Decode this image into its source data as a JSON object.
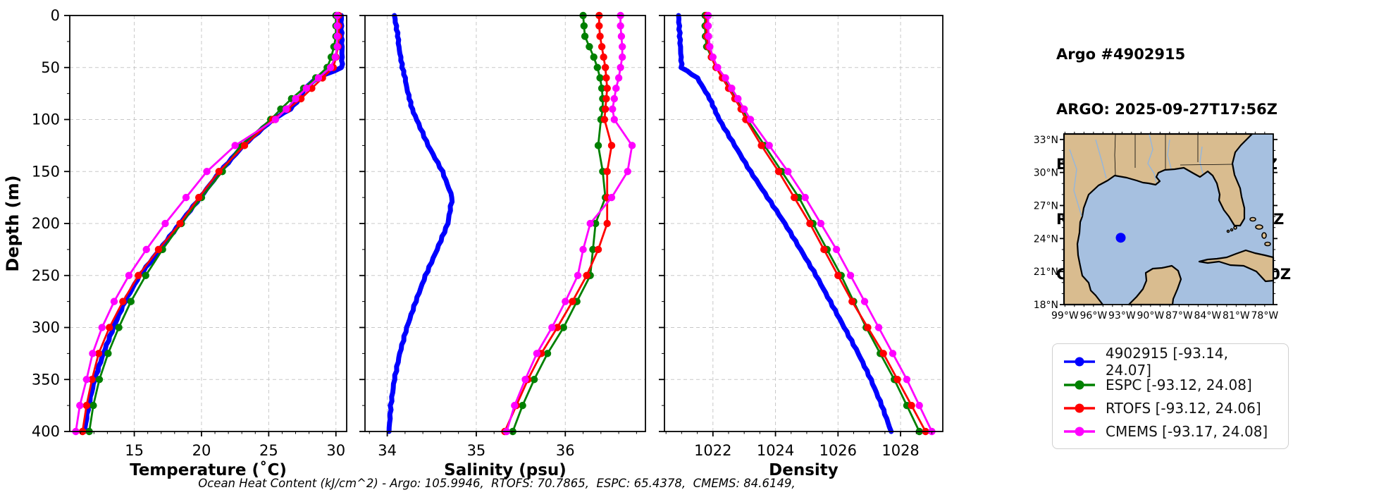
{
  "header": {
    "lines": [
      "Argo #4902915",
      "ARGO: 2025-09-27T17:56Z",
      "ESPC : 2025-09-27T18:00Z",
      "RTOFS: 2025-09-27T18:00Z",
      "CMEMS: 2025-09-27T18:00Z"
    ]
  },
  "footer": {
    "ocean_heat_content": "Ocean Heat Content (kJ/cm^2) - Argo: 105.9946,  RTOFS: 70.7865,  ESPC: 65.4378,  CMEMS: 84.6149,"
  },
  "legend": {
    "items": [
      {
        "label": "4902915 [-93.14, 24.07]",
        "color": "#0000ff"
      },
      {
        "label": "ESPC [-93.12, 24.08]",
        "color": "#008000"
      },
      {
        "label": "RTOFS [-93.12, 24.06]",
        "color": "#ff0000"
      },
      {
        "label": "CMEMS [-93.17, 24.08]",
        "color": "#ff00ff"
      }
    ]
  },
  "map": {
    "colors": {
      "land": "#d9bc8f",
      "ocean": "#a6c0e0",
      "coast": "#000000",
      "river": "#93b6dd"
    },
    "lat_tick_values": [
      33,
      30,
      27,
      24,
      21,
      18
    ],
    "lat_tick_labels": [
      "33°N",
      "30°N",
      "27°N",
      "24°N",
      "21°N",
      "18°N"
    ],
    "lon_tick_values": [
      99,
      96,
      93,
      90,
      87,
      84,
      81,
      78
    ],
    "lon_tick_labels": [
      "99°W",
      "96°W",
      "93°W",
      "90°W",
      "87°W",
      "84°W",
      "81°W",
      "78°W"
    ],
    "extent": {
      "lon": [
        -99.1,
        -77.1
      ],
      "lat": [
        18,
        33.5
      ]
    },
    "float_lonlat": [
      -93.14,
      24.07
    ],
    "float_color": "#0000ff"
  },
  "chart_data": {
    "type": "line",
    "ylabel": "Depth (m)",
    "ylim": [
      0,
      400
    ],
    "yticks": [
      0,
      50,
      100,
      150,
      200,
      250,
      300,
      350,
      400
    ],
    "y_minor_step": 25,
    "grid": "dashed",
    "depths": [
      0,
      10,
      20,
      30,
      40,
      50,
      60,
      70,
      80,
      90,
      100,
      125,
      150,
      175,
      200,
      225,
      250,
      275,
      300,
      325,
      350,
      375,
      400
    ],
    "panels": [
      {
        "name": "temperature",
        "xlabel": "Temperature (˚C)",
        "xlim": [
          10.2,
          30.8
        ],
        "xticks": [
          15,
          20,
          25,
          30
        ],
        "x_minor_step": 1,
        "series": [
          {
            "name": "4902915",
            "color": "#0000ff",
            "thick": true,
            "markers": false,
            "values": [
              30.4,
              30.4,
              30.42,
              30.45,
              30.45,
              30.45,
              28.6,
              27.7,
              27.3,
              26.6,
              25.3,
              23.1,
              21.4,
              19.9,
              18.4,
              16.9,
              15.4,
              14.3,
              13.45,
              12.7,
              12.05,
              11.6,
              11.3
            ]
          },
          {
            "name": "ESPC",
            "color": "#008000",
            "thick": false,
            "markers": true,
            "values": [
              30.0,
              30.0,
              30.0,
              29.85,
              29.65,
              29.35,
              28.5,
              27.6,
              26.7,
              25.9,
              25.15,
              22.9,
              21.55,
              20.0,
              18.5,
              17.1,
              15.85,
              14.75,
              13.85,
              13.05,
              12.4,
              11.95,
              11.65
            ]
          },
          {
            "name": "RTOFS",
            "color": "#ff0000",
            "thick": false,
            "markers": true,
            "values": [
              30.2,
              30.2,
              30.2,
              30.15,
              30.0,
              29.8,
              29.0,
              28.2,
              27.4,
              26.4,
              25.3,
              23.2,
              21.3,
              19.8,
              18.4,
              16.8,
              15.3,
              14.15,
              13.15,
              12.35,
              11.85,
              11.45,
              11.15
            ]
          },
          {
            "name": "CMEMS",
            "color": "#ff00ff",
            "thick": false,
            "markers": true,
            "values": [
              30.1,
              30.1,
              30.1,
              30.1,
              29.95,
              29.6,
              28.7,
              27.8,
              27.0,
              26.3,
              25.5,
              22.5,
              20.4,
              18.85,
              17.3,
              15.9,
              14.6,
              13.5,
              12.6,
              11.9,
              11.45,
              10.95,
              10.65
            ]
          }
        ]
      },
      {
        "name": "salinity",
        "xlabel": "Salinity (psu)",
        "xlim": [
          33.75,
          36.9
        ],
        "xticks": [
          34,
          35,
          36
        ],
        "x_minor_step": 0.2,
        "series": [
          {
            "name": "4902915",
            "color": "#0000ff",
            "thick": true,
            "markers": false,
            "values": [
              34.08,
              34.1,
              34.12,
              34.13,
              34.15,
              34.17,
              34.2,
              34.22,
              34.25,
              34.28,
              34.33,
              34.46,
              34.62,
              34.73,
              34.68,
              34.56,
              34.43,
              34.32,
              34.22,
              34.14,
              34.08,
              34.04,
              34.02
            ]
          },
          {
            "name": "ESPC",
            "color": "#008000",
            "thick": false,
            "markers": true,
            "values": [
              36.2,
              36.21,
              36.22,
              36.27,
              36.32,
              36.36,
              36.39,
              36.41,
              36.42,
              36.42,
              36.4,
              36.37,
              36.42,
              36.45,
              36.34,
              36.31,
              36.28,
              36.13,
              35.98,
              35.8,
              35.65,
              35.52,
              35.41
            ]
          },
          {
            "name": "RTOFS",
            "color": "#ff0000",
            "thick": false,
            "markers": true,
            "values": [
              36.38,
              36.38,
              36.39,
              36.41,
              36.43,
              36.45,
              36.46,
              36.47,
              36.46,
              36.45,
              36.44,
              36.52,
              36.47,
              36.47,
              36.47,
              36.37,
              36.24,
              36.08,
              35.91,
              35.73,
              35.58,
              35.45,
              35.32
            ]
          },
          {
            "name": "CMEMS",
            "color": "#ff00ff",
            "thick": false,
            "markers": true,
            "values": [
              36.62,
              36.62,
              36.63,
              36.64,
              36.64,
              36.62,
              36.6,
              36.57,
              36.55,
              36.53,
              36.55,
              36.75,
              36.7,
              36.52,
              36.28,
              36.2,
              36.14,
              36.0,
              35.85,
              35.68,
              35.55,
              35.43,
              35.34
            ]
          }
        ]
      },
      {
        "name": "density",
        "xlabel": "Density",
        "xlim": [
          1020.45,
          1029.35
        ],
        "xticks": [
          1022,
          1024,
          1026,
          1028
        ],
        "x_minor_step": 0.5,
        "series": [
          {
            "name": "4902915",
            "color": "#0000ff",
            "thick": true,
            "markers": false,
            "values": [
              1020.9,
              1020.92,
              1020.94,
              1020.96,
              1020.98,
              1021.0,
              1021.5,
              1021.7,
              1021.9,
              1022.05,
              1022.2,
              1022.7,
              1023.2,
              1023.75,
              1024.3,
              1024.8,
              1025.3,
              1025.75,
              1026.2,
              1026.65,
              1027.05,
              1027.4,
              1027.7
            ]
          },
          {
            "name": "ESPC",
            "color": "#008000",
            "thick": false,
            "markers": true,
            "values": [
              1021.75,
              1021.75,
              1021.76,
              1021.8,
              1021.95,
              1022.1,
              1022.35,
              1022.55,
              1022.75,
              1022.95,
              1023.1,
              1023.65,
              1024.2,
              1024.75,
              1025.2,
              1025.65,
              1026.1,
              1026.5,
              1026.9,
              1027.35,
              1027.8,
              1028.2,
              1028.6
            ]
          },
          {
            "name": "RTOFS",
            "color": "#ff0000",
            "thick": false,
            "markers": true,
            "values": [
              1021.8,
              1021.8,
              1021.8,
              1021.85,
              1021.95,
              1022.1,
              1022.3,
              1022.5,
              1022.7,
              1022.9,
              1023.05,
              1023.55,
              1024.1,
              1024.6,
              1025.1,
              1025.55,
              1026.0,
              1026.45,
              1026.95,
              1027.45,
              1027.9,
              1028.35,
              1028.8
            ]
          },
          {
            "name": "CMEMS",
            "color": "#ff00ff",
            "thick": false,
            "markers": true,
            "values": [
              1021.85,
              1021.85,
              1021.86,
              1021.9,
              1022.0,
              1022.15,
              1022.4,
              1022.6,
              1022.8,
              1023.0,
              1023.2,
              1023.8,
              1024.4,
              1024.95,
              1025.45,
              1025.95,
              1026.4,
              1026.85,
              1027.3,
              1027.75,
              1028.2,
              1028.6,
              1029.0
            ]
          }
        ]
      }
    ]
  }
}
